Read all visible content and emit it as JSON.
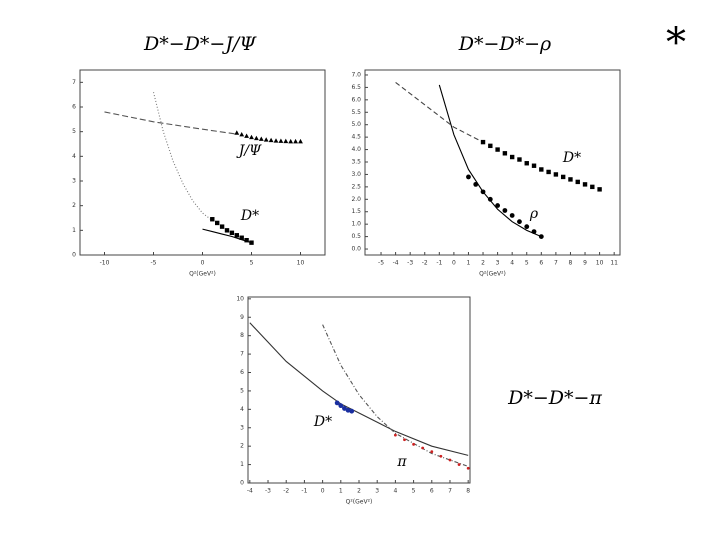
{
  "corner_mark": "*",
  "chart_data": [
    {
      "type": "line",
      "title": "D*−D*−J/Ψ",
      "x_label": "Q²(GeV²)",
      "xlim": [
        -12.5,
        12.5
      ],
      "ylim": [
        0,
        7.5
      ],
      "xticks": [
        -10,
        -5,
        0,
        5,
        10
      ],
      "yticks": [
        0,
        1,
        2,
        3,
        4,
        5,
        6,
        7
      ],
      "annotations": [
        "J/Ψ",
        "D*"
      ],
      "series": [
        {
          "color": "#555555",
          "mode": "line",
          "dash": "6 3",
          "x": [
            -10,
            -5,
            0,
            3.5
          ],
          "values": [
            5.8,
            5.4,
            5.1,
            4.9
          ]
        },
        {
          "color": "#000000",
          "mode": "markers",
          "marker": "triangle",
          "x": [
            3.5,
            4,
            4.5,
            5,
            5.5,
            6,
            6.5,
            7,
            7.5,
            8,
            8.5,
            9,
            9.5,
            10
          ],
          "values": [
            4.95,
            4.88,
            4.82,
            4.77,
            4.73,
            4.7,
            4.67,
            4.65,
            4.63,
            4.62,
            4.61,
            4.6,
            4.6,
            4.6
          ]
        },
        {
          "color": "#777777",
          "mode": "line",
          "dash": "1 2",
          "x": [
            -5,
            -4,
            -3,
            -2,
            -1,
            0,
            1
          ],
          "values": [
            6.6,
            5.0,
            3.8,
            2.9,
            2.2,
            1.7,
            1.4
          ]
        },
        {
          "color": "#000000",
          "mode": "markers",
          "marker": "square",
          "x": [
            1,
            1.5,
            2,
            2.5,
            3,
            3.5,
            4,
            4.5,
            5
          ],
          "values": [
            1.45,
            1.3,
            1.15,
            1.0,
            0.9,
            0.8,
            0.7,
            0.6,
            0.5
          ]
        },
        {
          "color": "#000000",
          "mode": "line",
          "dash": "none",
          "x": [
            0,
            1,
            2,
            3,
            4,
            5
          ],
          "values": [
            1.05,
            0.95,
            0.85,
            0.75,
            0.62,
            0.5
          ]
        }
      ]
    },
    {
      "type": "line",
      "title": "D*−D*−ρ",
      "x_label": "Q²(GeV²)",
      "xlim": [
        -6.1,
        11.4
      ],
      "ylim": [
        -0.24,
        7.2
      ],
      "xticks": [
        -5,
        -4,
        -3,
        -2,
        -1,
        0,
        1,
        2,
        3,
        4,
        5,
        6,
        7,
        8,
        9,
        10,
        11
      ],
      "yticks": [
        {
          "value": 0,
          "label": "0.0"
        },
        0.5,
        {
          "value": 1,
          "label": "1.0"
        },
        1.5,
        {
          "value": 2,
          "label": "2.0"
        },
        2.5,
        {
          "value": 3,
          "label": "3.0"
        },
        3.5,
        {
          "value": 4,
          "label": "4.0"
        },
        4.5,
        {
          "value": 5,
          "label": "5.0"
        },
        5.5,
        {
          "value": 6,
          "label": "6.0"
        },
        6.5,
        {
          "value": 7,
          "label": "7.0"
        }
      ],
      "annotations": [
        "D*",
        "ρ"
      ],
      "series": [
        {
          "color": "#000000",
          "mode": "line",
          "dash": "none",
          "x": [
            -1,
            0,
            1,
            2,
            3,
            4,
            5,
            6
          ],
          "values": [
            6.6,
            4.6,
            3.2,
            2.3,
            1.6,
            1.1,
            0.75,
            0.5
          ]
        },
        {
          "color": "#000000",
          "mode": "markers",
          "marker": "circle",
          "x": [
            1,
            1.5,
            2,
            2.5,
            3,
            3.5,
            4,
            4.5,
            5,
            5.5,
            6
          ],
          "values": [
            2.9,
            2.6,
            2.3,
            2.0,
            1.75,
            1.55,
            1.35,
            1.1,
            0.9,
            0.7,
            0.5
          ]
        },
        {
          "color": "#444444",
          "mode": "line",
          "dash": "5 3",
          "x": [
            -4,
            -2,
            0,
            2
          ],
          "values": [
            6.7,
            5.8,
            4.9,
            4.3
          ]
        },
        {
          "color": "#000000",
          "mode": "markers",
          "marker": "square",
          "x": [
            2,
            2.5,
            3,
            3.5,
            4,
            4.5,
            5,
            5.5,
            6,
            6.5,
            7,
            7.5,
            8,
            8.5,
            9,
            9.5,
            10
          ],
          "values": [
            4.3,
            4.15,
            4.0,
            3.85,
            3.7,
            3.6,
            3.45,
            3.35,
            3.2,
            3.1,
            3.0,
            2.9,
            2.8,
            2.7,
            2.6,
            2.5,
            2.4
          ]
        }
      ]
    },
    {
      "type": "line",
      "title": "D*−D*−π",
      "x_label": "Q²(GeV²)",
      "xlim": [
        -4.1,
        8.1
      ],
      "ylim": [
        0,
        10.1
      ],
      "xticks": [
        -4,
        -3,
        -2,
        -1,
        0,
        1,
        2,
        3,
        4,
        5,
        6,
        7,
        8
      ],
      "yticks": [
        0,
        1,
        2,
        3,
        4,
        5,
        6,
        7,
        8,
        9,
        10
      ],
      "annotations": [
        "D*",
        "π"
      ],
      "series": [
        {
          "color": "#333333",
          "mode": "line",
          "dash": "none",
          "x": [
            -4,
            -2,
            0,
            1,
            2,
            4,
            6,
            8
          ],
          "values": [
            8.7,
            6.6,
            5.0,
            4.3,
            3.8,
            2.8,
            2.0,
            1.5
          ]
        },
        {
          "color": "#1a2fa0",
          "mode": "markers",
          "marker": "circle",
          "x": [
            0.8,
            1,
            1.2,
            1.4,
            1.6
          ],
          "values": [
            4.35,
            4.2,
            4.05,
            3.95,
            3.9
          ]
        },
        {
          "color": "#555555",
          "mode": "line",
          "dash": "4 2 1 2",
          "x": [
            0,
            1,
            2,
            3,
            4,
            6,
            8
          ],
          "values": [
            8.6,
            6.4,
            4.8,
            3.6,
            2.7,
            1.6,
            0.9
          ]
        },
        {
          "color": "#cc2222",
          "mode": "markers",
          "marker": "dot",
          "x": [
            4,
            4.5,
            5,
            5.5,
            6,
            6.5,
            7,
            7.5,
            8
          ],
          "values": [
            2.6,
            2.35,
            2.1,
            1.9,
            1.7,
            1.45,
            1.25,
            1.0,
            0.8
          ]
        }
      ]
    }
  ]
}
